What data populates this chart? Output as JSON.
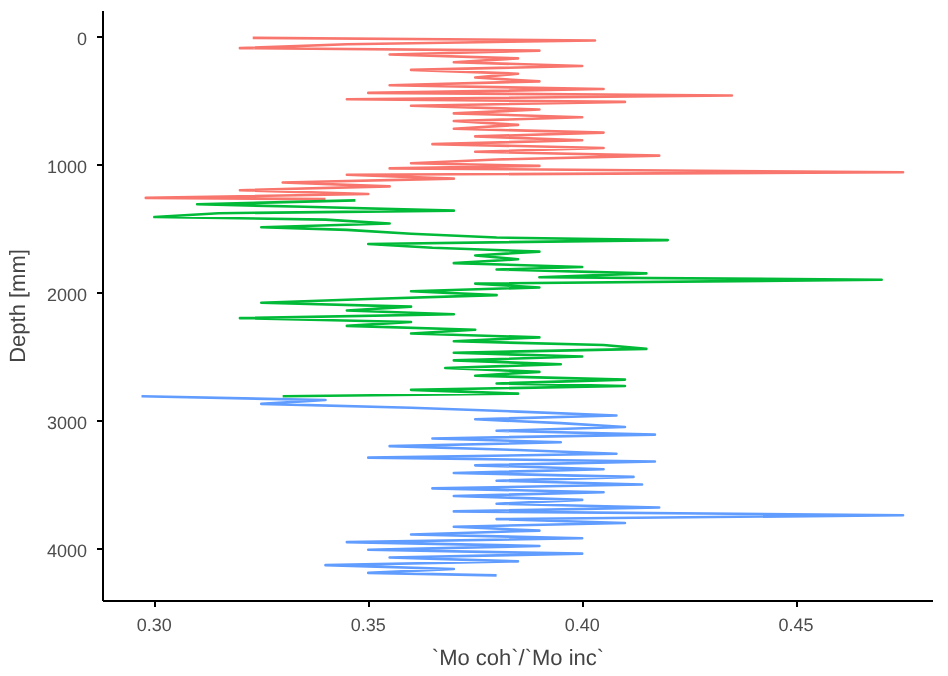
{
  "chart_data": {
    "type": "line",
    "xlabel": "`Mo coh`/`Mo inc`",
    "ylabel": "Depth [mm]",
    "xlim": [
      0.288,
      0.482
    ],
    "ylim": [
      4400,
      -210
    ],
    "xticks": [
      {
        "value": 0.3,
        "label": "0.30"
      },
      {
        "value": 0.35,
        "label": "0.35"
      },
      {
        "value": 0.4,
        "label": "0.40"
      },
      {
        "value": 0.45,
        "label": "0.45"
      }
    ],
    "yticks": [
      0,
      1000,
      2000,
      3000,
      4000
    ],
    "grid": false,
    "marker": "none",
    "line_style": "solid",
    "series": [
      {
        "color": "#f8766d",
        "x": [
          0.323,
          0.403,
          0.345,
          0.32,
          0.39,
          0.355,
          0.385,
          0.37,
          0.4,
          0.36,
          0.385,
          0.375,
          0.39,
          0.355,
          0.405,
          0.35,
          0.435,
          0.345,
          0.41,
          0.36,
          0.39,
          0.37,
          0.4,
          0.37,
          0.385,
          0.37,
          0.405,
          0.375,
          0.4,
          0.365,
          0.405,
          0.375,
          0.418,
          0.38,
          0.36,
          0.39,
          0.355,
          0.475,
          0.345,
          0.37,
          0.33,
          0.355,
          0.32,
          0.35,
          0.298,
          0.34
        ],
        "values": [
          0,
          20,
          50,
          80,
          100,
          130,
          160,
          190,
          220,
          250,
          280,
          310,
          340,
          370,
          400,
          430,
          450,
          480,
          500,
          530,
          560,
          590,
          620,
          650,
          680,
          710,
          740,
          770,
          800,
          830,
          860,
          890,
          920,
          950,
          980,
          1000,
          1020,
          1050,
          1070,
          1100,
          1130,
          1160,
          1190,
          1220,
          1250,
          1260
        ]
      },
      {
        "color": "#00ba38",
        "x": [
          0.347,
          0.31,
          0.335,
          0.37,
          0.315,
          0.3,
          0.34,
          0.355,
          0.325,
          0.345,
          0.36,
          0.38,
          0.42,
          0.35,
          0.365,
          0.39,
          0.375,
          0.385,
          0.37,
          0.4,
          0.38,
          0.415,
          0.39,
          0.47,
          0.375,
          0.39,
          0.36,
          0.38,
          0.35,
          0.325,
          0.36,
          0.345,
          0.37,
          0.32,
          0.36,
          0.345,
          0.375,
          0.36,
          0.39,
          0.37,
          0.405,
          0.415,
          0.37,
          0.4,
          0.37,
          0.395,
          0.368,
          0.39,
          0.375,
          0.41,
          0.38,
          0.41,
          0.36,
          0.385,
          0.33
        ],
        "values": [
          1270,
          1300,
          1320,
          1350,
          1370,
          1400,
          1420,
          1450,
          1480,
          1500,
          1530,
          1560,
          1580,
          1610,
          1640,
          1670,
          1700,
          1730,
          1760,
          1790,
          1810,
          1840,
          1870,
          1890,
          1920,
          1950,
          1980,
          2010,
          2040,
          2070,
          2100,
          2130,
          2160,
          2190,
          2220,
          2250,
          2280,
          2310,
          2340,
          2370,
          2400,
          2430,
          2460,
          2490,
          2520,
          2550,
          2580,
          2610,
          2640,
          2670,
          2700,
          2720,
          2750,
          2780,
          2800
        ]
      },
      {
        "color": "#619cff",
        "x": [
          0.297,
          0.34,
          0.325,
          0.36,
          0.385,
          0.408,
          0.375,
          0.395,
          0.41,
          0.38,
          0.417,
          0.365,
          0.395,
          0.355,
          0.385,
          0.408,
          0.35,
          0.417,
          0.375,
          0.405,
          0.37,
          0.412,
          0.38,
          0.414,
          0.365,
          0.405,
          0.37,
          0.4,
          0.38,
          0.418,
          0.37,
          0.475,
          0.38,
          0.41,
          0.37,
          0.39,
          0.36,
          0.4,
          0.345,
          0.39,
          0.35,
          0.4,
          0.355,
          0.385,
          0.34,
          0.37,
          0.35,
          0.38
        ],
        "values": [
          2800,
          2830,
          2860,
          2890,
          2920,
          2950,
          2980,
          3010,
          3040,
          3070,
          3100,
          3130,
          3160,
          3190,
          3220,
          3250,
          3280,
          3310,
          3340,
          3370,
          3400,
          3430,
          3460,
          3490,
          3520,
          3550,
          3580,
          3610,
          3640,
          3670,
          3700,
          3730,
          3760,
          3790,
          3820,
          3850,
          3880,
          3910,
          3940,
          3970,
          4000,
          4030,
          4060,
          4090,
          4120,
          4150,
          4180,
          4200
        ]
      }
    ]
  }
}
